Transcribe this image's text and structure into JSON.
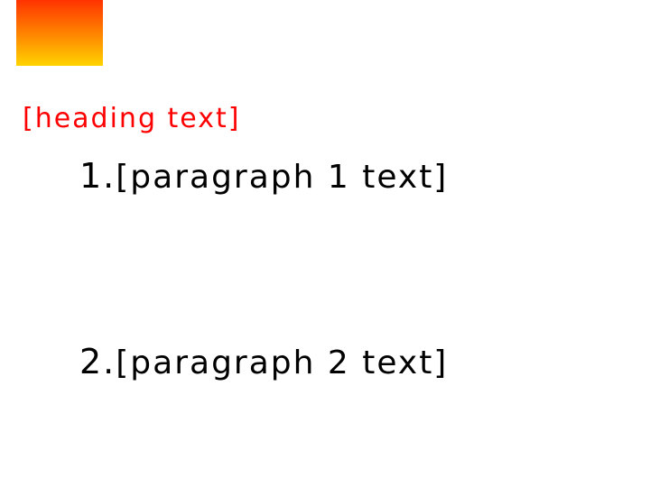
{
  "heading": "[heading text]",
  "items": [
    {
      "number": "1.",
      "text": "[paragraph 1 text]"
    },
    {
      "number": "2.",
      "text": "[paragraph 2 text]"
    }
  ],
  "colors": {
    "heading": "#ff0000",
    "body_text": "#000000",
    "gradient_top": "#ff3300",
    "gradient_bottom": "#ffd400"
  }
}
